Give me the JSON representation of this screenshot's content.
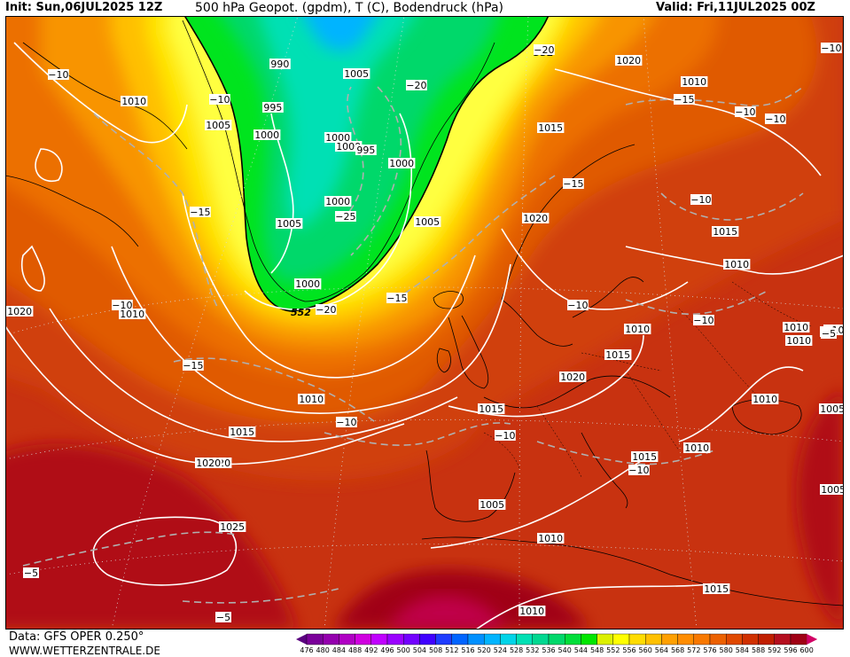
{
  "header": {
    "init": "Init: Sun,06JUL2025 12Z",
    "title": "500 hPa Geopot. (gpdm), T (C), Bodendruck (hPa)",
    "valid": "Valid: Fri,11JUL2025 00Z"
  },
  "footer": {
    "data_source": "Data: GFS OPER 0.250°",
    "website": "WWW.WETTERZENTRALE.DE"
  },
  "legend": {
    "values": [
      "476",
      "480",
      "484",
      "488",
      "492",
      "496",
      "500",
      "504",
      "508",
      "512",
      "516",
      "520",
      "524",
      "528",
      "532",
      "536",
      "540",
      "544",
      "548",
      "552",
      "556",
      "560",
      "564",
      "568",
      "572",
      "576",
      "580",
      "584",
      "588",
      "592",
      "596",
      "600"
    ],
    "colors": [
      "#5a007f",
      "#7a009a",
      "#9400ae",
      "#b000c4",
      "#d000e0",
      "#c000ff",
      "#9a00ff",
      "#7200ff",
      "#4000ff",
      "#1e3cff",
      "#0064ff",
      "#0090ff",
      "#00b4ff",
      "#00d4e8",
      "#00e0b4",
      "#00d890",
      "#00d86a",
      "#00de3a",
      "#00e600",
      "#dcf000",
      "#ffff00",
      "#ffdc00",
      "#ffc000",
      "#ffa000",
      "#ff8c00",
      "#f87800",
      "#ec6000",
      "#e04800",
      "#d03000",
      "#c01e00",
      "#b40e1e",
      "#a00014",
      "#d20064"
    ],
    "unit": "gpdm"
  },
  "map": {
    "contour_552_label": "552",
    "pressure_labels": [
      {
        "text": "990"
      },
      {
        "text": "995"
      },
      {
        "text": "1000"
      },
      {
        "text": "1005"
      },
      {
        "text": "1010"
      },
      {
        "text": "1005"
      },
      {
        "text": "1000"
      },
      {
        "text": "1000"
      },
      {
        "text": "995"
      },
      {
        "text": "1000"
      },
      {
        "text": "1000"
      },
      {
        "text": "1005"
      },
      {
        "text": "1005"
      },
      {
        "text": "1000"
      },
      {
        "text": "1010"
      },
      {
        "text": "1015"
      },
      {
        "text": "1020"
      },
      {
        "text": "1020"
      },
      {
        "text": "1025"
      },
      {
        "text": "1020"
      },
      {
        "text": "1020"
      },
      {
        "text": "1015"
      },
      {
        "text": "1010"
      },
      {
        "text": "1015"
      },
      {
        "text": "1010"
      },
      {
        "text": "1015"
      },
      {
        "text": "1020"
      },
      {
        "text": "1010"
      },
      {
        "text": "1015"
      },
      {
        "text": "1010"
      },
      {
        "text": "1015"
      },
      {
        "text": "1010"
      },
      {
        "text": "1010"
      },
      {
        "text": "1005"
      },
      {
        "text": "1005"
      },
      {
        "text": "1005"
      },
      {
        "text": "1010"
      },
      {
        "text": "1015"
      },
      {
        "text": "1010"
      },
      {
        "text": "1010"
      },
      {
        "text": "1020"
      },
      {
        "text": "1010"
      }
    ],
    "temperature_labels": [
      {
        "text": "-10"
      },
      {
        "text": "-10"
      },
      {
        "text": "-15"
      },
      {
        "text": "-10"
      },
      {
        "text": "-15"
      },
      {
        "text": "-20"
      },
      {
        "text": "-20"
      },
      {
        "text": "-25"
      },
      {
        "text": "-20"
      },
      {
        "text": "-15"
      },
      {
        "text": "-10"
      },
      {
        "text": "-10"
      },
      {
        "text": "-10"
      },
      {
        "text": "-15"
      },
      {
        "text": "-10"
      },
      {
        "text": "-10"
      },
      {
        "text": "-10"
      },
      {
        "text": "-10"
      },
      {
        "text": "-10"
      },
      {
        "text": "-5"
      },
      {
        "text": "-15"
      },
      {
        "text": "-10"
      },
      {
        "text": "-5"
      },
      {
        "text": "-10"
      },
      {
        "text": "-5"
      },
      {
        "text": "-5"
      }
    ]
  }
}
